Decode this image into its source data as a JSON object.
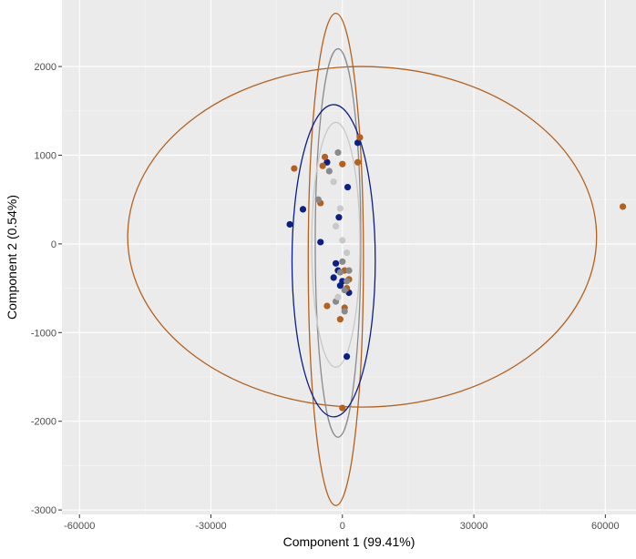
{
  "chart_data": {
    "type": "scatter",
    "title": "",
    "xlabel": "Component 1 (99.41%)",
    "ylabel": "Component 2 (0.54%)",
    "xlim": [
      -64000,
      67000
    ],
    "ylim": [
      -3050,
      2750
    ],
    "x_ticks": [
      -60000,
      -30000,
      0,
      30000,
      60000
    ],
    "x_tick_labels": [
      "-60000",
      "-30000",
      "0",
      "30000",
      "60000"
    ],
    "y_ticks": [
      -3000,
      -2000,
      -1000,
      0,
      1000,
      2000
    ],
    "y_tick_labels": [
      "-3000",
      "-2000",
      "-1000",
      "0",
      "1000",
      "2000"
    ],
    "grid": true,
    "legend": "none",
    "colors": {
      "panel": "#ebebeb",
      "grid_major": "#ffffff",
      "grid_minor": "#f5f5f5",
      "navy": "#0b1f86",
      "orange": "#b5601c",
      "gray": "#8a8a8a",
      "lightgray": "#c8c8c8"
    },
    "series": [
      {
        "color": "#0b1f86",
        "points": [
          [
            -12000,
            220
          ],
          [
            -9000,
            390
          ],
          [
            -5000,
            20
          ],
          [
            -3500,
            920
          ],
          [
            -2000,
            -380
          ],
          [
            -1500,
            -220
          ],
          [
            -800,
            300
          ],
          [
            -500,
            -470
          ],
          [
            1000,
            -1270
          ],
          [
            1200,
            640
          ],
          [
            1500,
            -550
          ],
          [
            3500,
            1140
          ],
          [
            -1000,
            -300
          ],
          [
            0,
            -420
          ]
        ]
      },
      {
        "color": "#b5601c",
        "points": [
          [
            -11000,
            850
          ],
          [
            -5000,
            460
          ],
          [
            -4500,
            880
          ],
          [
            -4000,
            980
          ],
          [
            -3500,
            -700
          ],
          [
            -500,
            -850
          ],
          [
            0,
            900
          ],
          [
            0,
            -1850
          ],
          [
            500,
            -720
          ],
          [
            1000,
            -500
          ],
          [
            1500,
            -400
          ],
          [
            3500,
            920
          ],
          [
            4000,
            1200
          ],
          [
            64000,
            420
          ],
          [
            500,
            -300
          ]
        ]
      },
      {
        "color": "#8a8a8a",
        "points": [
          [
            -5500,
            500
          ],
          [
            -3000,
            820
          ],
          [
            -1000,
            1030
          ],
          [
            -500,
            -320
          ],
          [
            0,
            -200
          ],
          [
            500,
            -520
          ],
          [
            1000,
            -420
          ],
          [
            -1500,
            -650
          ],
          [
            500,
            -760
          ],
          [
            1500,
            -300
          ]
        ]
      },
      {
        "color": "#c8c8c8",
        "points": [
          [
            -1500,
            200
          ],
          [
            -1000,
            -600
          ],
          [
            0,
            40
          ],
          [
            -2000,
            700
          ],
          [
            1000,
            -100
          ],
          [
            -500,
            400
          ]
        ]
      }
    ],
    "ellipses": [
      {
        "color": "#b5601c",
        "cx": 4500,
        "cy": 80,
        "rx": 53500,
        "ry": 1920
      },
      {
        "color": "#b5601c",
        "cx": -1500,
        "cy": -175,
        "rx": 6300,
        "ry": 2775
      },
      {
        "color": "#8a8a8a",
        "cx": -1000,
        "cy": 10,
        "rx": 5200,
        "ry": 2190
      },
      {
        "color": "#0b1f86",
        "cx": -2000,
        "cy": -190,
        "rx": 9500,
        "ry": 1760
      },
      {
        "color": "#c8c8c8",
        "cx": -1500,
        "cy": -10,
        "rx": 5500,
        "ry": 1380
      }
    ]
  }
}
